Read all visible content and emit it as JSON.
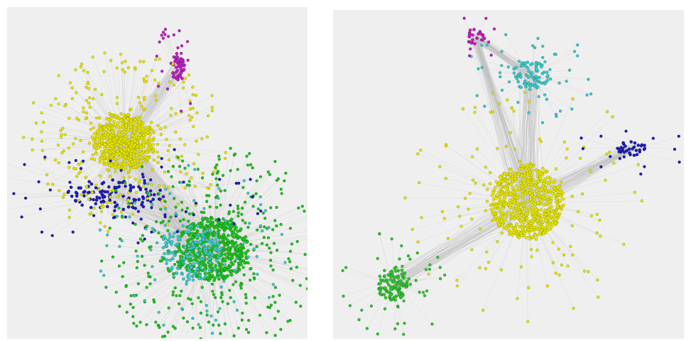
{
  "figure": {
    "panels": [
      {
        "id": "left",
        "clusters": [
          {
            "color": "#e6e600",
            "stroke": "#8a8a00"
          },
          {
            "color": "#1fc41f",
            "stroke": "#0f6e0f"
          },
          {
            "color": "#1f1fb8",
            "stroke": "#0b0b66"
          },
          {
            "color": "#3ec8c8",
            "stroke": "#1a7a7a"
          },
          {
            "color": "#c020c0",
            "stroke": "#6e0f6e"
          }
        ]
      },
      {
        "id": "right",
        "clusters": [
          {
            "color": "#e6e600",
            "stroke": "#8a8a00"
          },
          {
            "color": "#3ec8c8",
            "stroke": "#1a7a7a"
          },
          {
            "color": "#c020c0",
            "stroke": "#6e0f6e"
          },
          {
            "color": "#1f1fb8",
            "stroke": "#0b0b66"
          },
          {
            "color": "#33c433",
            "stroke": "#157015"
          }
        ]
      }
    ]
  }
}
